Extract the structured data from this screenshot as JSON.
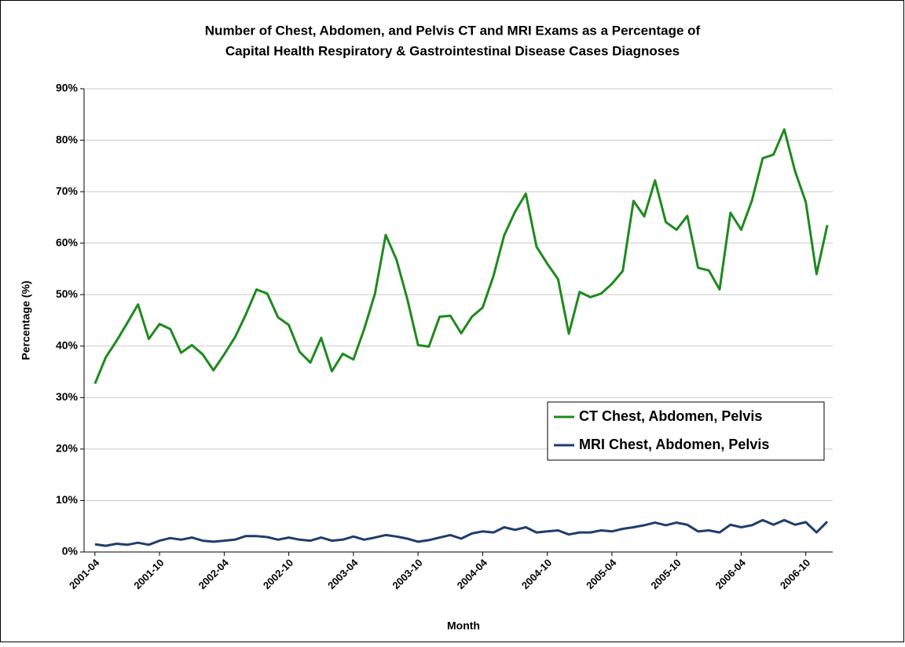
{
  "chart_data": {
    "type": "line",
    "title": [
      "Number of Chest, Abdomen, and Pelvis CT and MRI Exams as a Percentage of",
      "Capital Health Respiratory & Gastrointestinal Disease Cases Diagnoses"
    ],
    "x_label": "Month",
    "y_label": "Percentage (%)",
    "categories": [
      "2001-04",
      null,
      null,
      null,
      null,
      null,
      "2001-10",
      null,
      null,
      null,
      null,
      null,
      "2002-04",
      null,
      null,
      null,
      null,
      null,
      "2002-10",
      null,
      null,
      null,
      null,
      null,
      "2003-04",
      null,
      null,
      null,
      null,
      null,
      "2003-10",
      null,
      null,
      null,
      null,
      null,
      "2004-04",
      null,
      null,
      null,
      null,
      null,
      "2004-10",
      null,
      null,
      null,
      null,
      null,
      "2005-04",
      null,
      null,
      null,
      null,
      null,
      "2005-10",
      null,
      null,
      null,
      null,
      null,
      "2006-04",
      null,
      null,
      null,
      null,
      null,
      "2006-10",
      null,
      null
    ],
    "series": [
      {
        "name": "CT Chest, Abdomen, Pelvis",
        "color": "#1e8a1e",
        "values": [
          32.7,
          37.8,
          41,
          44.5,
          48.1,
          41.4,
          44.3,
          43.3,
          38.7,
          40.2,
          38.4,
          35.3,
          38.4,
          41.7,
          46.1,
          51.0,
          50.2,
          45.6,
          44.1,
          38.9,
          36.8,
          41.6,
          35.1,
          38.5,
          37.4,
          43.3,
          50.2,
          61.6,
          56.8,
          49.2,
          40.2,
          39.9,
          45.7,
          45.9,
          42.5,
          45.7,
          47.5,
          53.6,
          61.5,
          66.1,
          69.6,
          59.3,
          56,
          53,
          42.4,
          50.5,
          49.5,
          50.2,
          52.1,
          54.6,
          68.2,
          65.2,
          72.2,
          64.1,
          62.6,
          65.3,
          55.2,
          54.7,
          51,
          65.9,
          62.6,
          68.3,
          76.5,
          77.2,
          82.1,
          74,
          68,
          54,
          63.5
        ]
      },
      {
        "name": "MRI Chest, Abdomen, Pelvis",
        "color": "#1f3d6b",
        "values": [
          1.5,
          1.2,
          1.6,
          1.4,
          1.8,
          1.4,
          2.2,
          2.7,
          2.4,
          2.8,
          2.2,
          2.0,
          2.2,
          2.4,
          3.1,
          3.1,
          2.9,
          2.4,
          2.8,
          2.4,
          2.2,
          2.8,
          2.2,
          2.4,
          3.0,
          2.4,
          2.8,
          3.3,
          3.0,
          2.6,
          2.0,
          2.3,
          2.8,
          3.3,
          2.6,
          3.6,
          4.0,
          3.8,
          4.8,
          4.3,
          4.8,
          3.8,
          4.0,
          4.2,
          3.4,
          3.8,
          3.8,
          4.2,
          4.0,
          4.5,
          4.8,
          5.2,
          5.7,
          5.2,
          5.7,
          5.3,
          4.0,
          4.2,
          3.8,
          5.3,
          4.8,
          5.2,
          6.2,
          5.3,
          6.2,
          5.3,
          5.8,
          3.8,
          5.9
        ]
      }
    ],
    "ylim": [
      0,
      90
    ],
    "yticks": [
      {
        "value": 0,
        "label": "0%"
      },
      {
        "value": 10,
        "label": "10%"
      },
      {
        "value": 20,
        "label": "20%"
      },
      {
        "value": 30,
        "label": "30%"
      },
      {
        "value": 40,
        "label": "40%"
      },
      {
        "value": 50,
        "label": "50%"
      },
      {
        "value": 60,
        "label": "60%"
      },
      {
        "value": 70,
        "label": "70%"
      },
      {
        "value": 80,
        "label": "80%"
      },
      {
        "value": 90,
        "label": "90%"
      }
    ],
    "grid": true,
    "legend": "right"
  }
}
